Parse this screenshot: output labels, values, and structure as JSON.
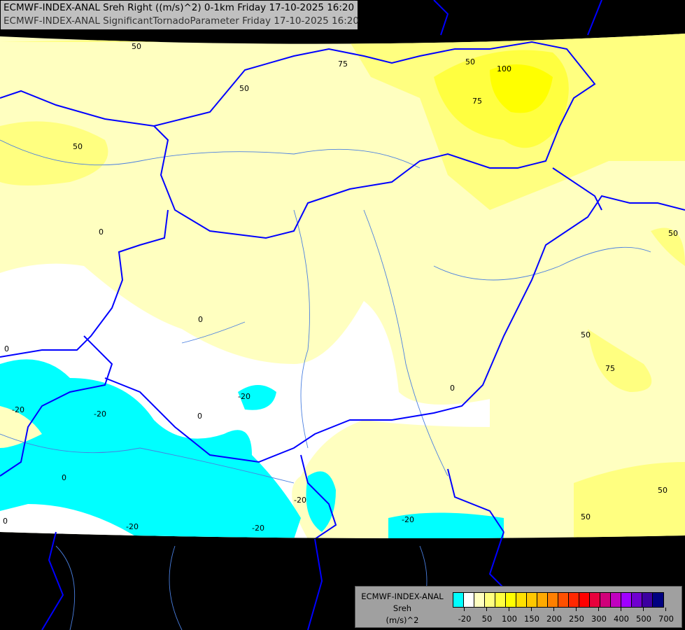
{
  "title": {
    "line1": "ECMWF-INDEX-ANAL Sreh Right ((m/s)^2) 0-1km Friday 17-10-2025 16:20",
    "line2": "ECMWF-INDEX-ANAL SignificantTornadoParameter Friday 17-10-2025 16:20"
  },
  "legend": {
    "name": "ECMWF-INDEX-ANAL",
    "variable": "Sreh",
    "unit": "(m/s)^2",
    "colors": [
      "#00ffff",
      "#ffffff",
      "#ffffc0",
      "#ffff80",
      "#ffff40",
      "#ffff00",
      "#ffe000",
      "#ffc800",
      "#ffaa00",
      "#ff8000",
      "#ff5000",
      "#ff2800",
      "#ff0000",
      "#e8003c",
      "#d0007a",
      "#c000c0",
      "#a000ff",
      "#7000d0",
      "#3c00a0",
      "#000080"
    ],
    "tick_labels": [
      "-20",
      "50",
      "100",
      "150",
      "200",
      "250",
      "300",
      "400",
      "500",
      "700"
    ]
  },
  "map": {
    "background_color": "#000000",
    "border_color": "#0000ff",
    "river_color": "#4080ff",
    "contour_labels": [
      "50",
      "75",
      "50",
      "50",
      "100",
      "75",
      "50",
      "50",
      "0",
      "0",
      "0",
      "0",
      "50",
      "75",
      "-20",
      "-20",
      "0",
      "-20",
      "0",
      "0",
      "-20",
      "-20",
      "-20",
      "-20",
      "50",
      "50"
    ]
  }
}
